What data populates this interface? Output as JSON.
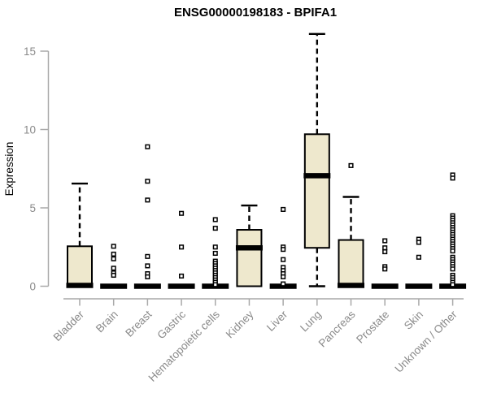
{
  "chart_data": {
    "type": "boxplot",
    "title": "ENSG00000198183 - BPIFA1",
    "ylabel": "Expression",
    "xlabel": "",
    "yticks": [
      0,
      5,
      10,
      15
    ],
    "ylim": [
      0,
      16.2
    ],
    "grid": false,
    "legend": "none",
    "categories": [
      "Bladder",
      "Brain",
      "Breast",
      "Gastric",
      "Hematopoietic cells",
      "Kidney",
      "Liver",
      "Lung",
      "Pancreas",
      "Prostate",
      "Skin",
      "Unknown / Other"
    ],
    "boxes": [
      {
        "category": "Bladder",
        "min": 0,
        "q1": 0,
        "median": 0.05,
        "q3": 2.55,
        "max": 6.55,
        "outliers": []
      },
      {
        "category": "Brain",
        "min": 0,
        "q1": 0,
        "median": 0,
        "q3": 0,
        "max": 0,
        "outliers": [
          2.55,
          2.05,
          1.75,
          1.15,
          0.85,
          0.7
        ]
      },
      {
        "category": "Breast",
        "min": 0,
        "q1": 0,
        "median": 0,
        "q3": 0,
        "max": 0,
        "outliers": [
          8.9,
          6.7,
          5.5,
          1.9,
          1.3,
          0.8,
          0.6
        ]
      },
      {
        "category": "Gastric",
        "min": 0,
        "q1": 0,
        "median": 0,
        "q3": 0,
        "max": 0,
        "outliers": [
          4.65,
          2.5,
          0.65
        ]
      },
      {
        "category": "Hematopoietic cells",
        "min": 0,
        "q1": 0,
        "median": 0,
        "q3": 0,
        "max": 0,
        "outliers": [
          4.25,
          3.7,
          2.5,
          2.1,
          1.6,
          1.45,
          1.3,
          1.15,
          1.0,
          0.85,
          0.7,
          0.55,
          0.4,
          0.25,
          0.1
        ]
      },
      {
        "category": "Kidney",
        "min": 0,
        "q1": 0,
        "median": 2.45,
        "q3": 3.6,
        "max": 5.15,
        "outliers": []
      },
      {
        "category": "Liver",
        "min": 0,
        "q1": 0,
        "median": 0,
        "q3": 0,
        "max": 0,
        "outliers": [
          4.9,
          2.5,
          2.35,
          1.7,
          1.2,
          1.0,
          0.8,
          0.6,
          0.15
        ]
      },
      {
        "category": "Lung",
        "min": 0,
        "q1": 2.45,
        "median": 7.05,
        "q3": 9.7,
        "max": 16.1,
        "outliers": []
      },
      {
        "category": "Pancreas",
        "min": 0,
        "q1": 0,
        "median": 0.05,
        "q3": 2.95,
        "max": 5.7,
        "outliers": [
          7.7
        ]
      },
      {
        "category": "Prostate",
        "min": 0,
        "q1": 0,
        "median": 0,
        "q3": 0,
        "max": 0,
        "outliers": [
          2.9,
          2.45,
          2.2,
          1.25,
          1.1
        ]
      },
      {
        "category": "Skin",
        "min": 0,
        "q1": 0,
        "median": 0,
        "q3": 0,
        "max": 0,
        "outliers": [
          3.0,
          2.8,
          1.85
        ]
      },
      {
        "category": "Unknown / Other",
        "min": 0,
        "q1": 0,
        "median": 0,
        "q3": 0,
        "max": 0,
        "outliers": [
          7.1,
          6.9,
          4.5,
          4.35,
          4.2,
          4.05,
          3.9,
          3.75,
          3.6,
          3.45,
          3.3,
          3.15,
          3.0,
          2.85,
          2.7,
          2.55,
          2.4,
          2.25,
          1.85,
          1.7,
          1.55,
          1.4,
          1.25,
          1.1,
          0.7,
          0.55,
          0.4,
          0.25,
          0.1
        ]
      }
    ],
    "colors": {
      "background": "#FFFFFF",
      "box_fill": "#EEE8CD",
      "box_border": "#000000",
      "median": "#000000",
      "whisker": "#000000",
      "outlier_fill": "#FFFFFF",
      "outlier_border": "#000000",
      "axis_line": "#A9A9A9",
      "tick_label": "#8A8A8A",
      "title": "#000000"
    }
  }
}
